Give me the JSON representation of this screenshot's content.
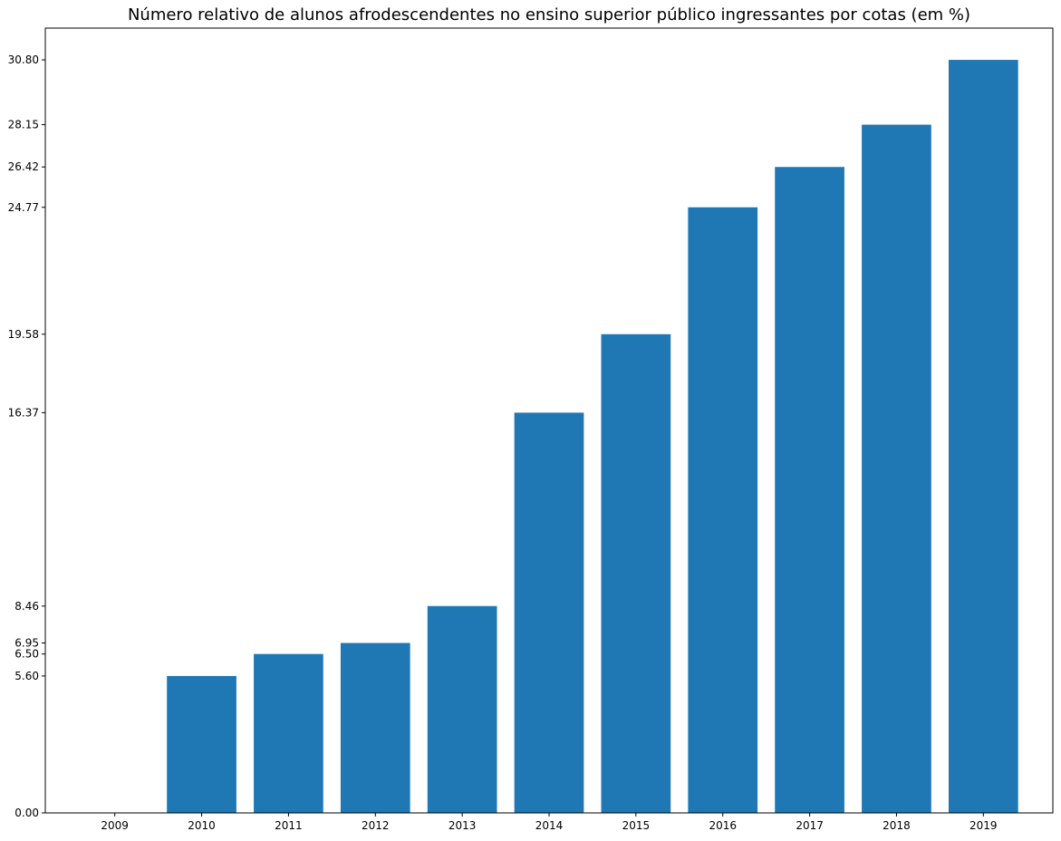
{
  "chart_data": {
    "type": "bar",
    "title": "Número relativo de alunos afrodescendentes no ensino superior público ingressantes por cotas (em %)",
    "xlabel": "",
    "ylabel": "",
    "categories": [
      "2009",
      "2010",
      "2011",
      "2012",
      "2013",
      "2014",
      "2015",
      "2016",
      "2017",
      "2018",
      "2019"
    ],
    "values": [
      0.0,
      5.6,
      6.5,
      6.95,
      8.46,
      16.37,
      19.58,
      24.77,
      26.42,
      28.15,
      30.8
    ],
    "ytick_labels": [
      "0.00",
      "5.60",
      "6.50",
      "6.95",
      "8.46",
      "16.37",
      "19.58",
      "24.77",
      "26.42",
      "28.15",
      "30.80"
    ],
    "ylim": [
      0,
      32.1
    ],
    "grid": false,
    "legend": "none",
    "bar_color": "#1f77b4"
  }
}
